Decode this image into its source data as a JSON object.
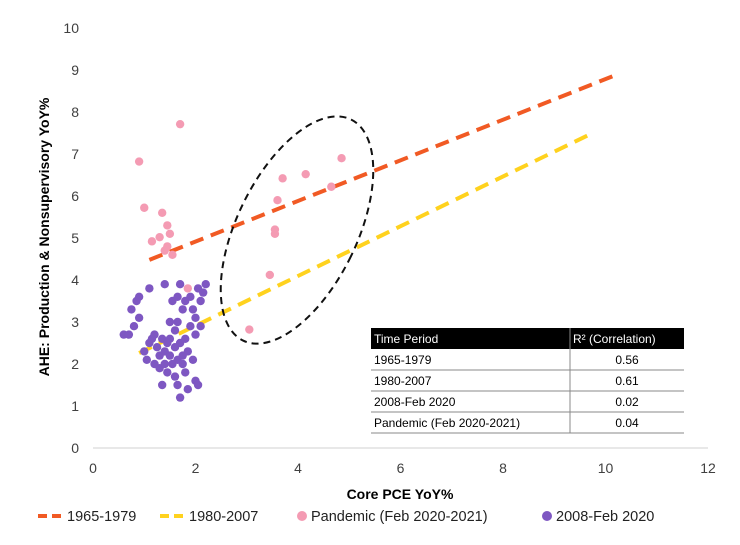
{
  "chart_data": {
    "type": "scatter",
    "xlabel": "Core PCE YoY%",
    "ylabel": "AHE: Production & Nonsupervisory YoY%",
    "xlim": [
      0,
      12
    ],
    "ylim": [
      0,
      10
    ],
    "xticks": [
      0,
      2,
      4,
      6,
      8,
      10,
      12
    ],
    "yticks": [
      0,
      1,
      2,
      3,
      4,
      5,
      6,
      7,
      8,
      9,
      10
    ],
    "grid": false,
    "legend_position": "bottom",
    "trend_lines": [
      {
        "name": "1965-1979",
        "color": "#F15A24",
        "x": [
          1.1,
          10.2
        ],
        "y": [
          4.48,
          8.88
        ]
      },
      {
        "name": "1980-2007",
        "color": "#FFD21E",
        "x": [
          0.9,
          9.75
        ],
        "y": [
          2.26,
          7.5
        ]
      }
    ],
    "series": [
      {
        "name": "Pandemic (Feb 2020-2021)",
        "color": "#F49BB3",
        "points": [
          [
            0.9,
            6.82
          ],
          [
            1.7,
            7.71
          ],
          [
            1.0,
            5.72
          ],
          [
            1.35,
            5.6
          ],
          [
            1.45,
            5.3
          ],
          [
            1.5,
            5.1
          ],
          [
            1.15,
            4.92
          ],
          [
            1.3,
            5.02
          ],
          [
            1.45,
            4.8
          ],
          [
            1.4,
            4.7
          ],
          [
            1.55,
            4.6
          ],
          [
            1.85,
            3.8
          ],
          [
            3.05,
            2.82
          ],
          [
            3.45,
            4.12
          ],
          [
            3.55,
            5.1
          ],
          [
            3.55,
            5.2
          ],
          [
            3.6,
            5.9
          ],
          [
            3.7,
            6.42
          ],
          [
            4.15,
            6.52
          ],
          [
            4.65,
            6.22
          ],
          [
            4.85,
            6.9
          ]
        ]
      },
      {
        "name": "2008-Feb 2020",
        "color": "#7E57C2",
        "points": [
          [
            0.6,
            2.7
          ],
          [
            0.7,
            2.7
          ],
          [
            0.75,
            3.3
          ],
          [
            0.8,
            2.9
          ],
          [
            0.85,
            3.5
          ],
          [
            0.9,
            3.6
          ],
          [
            0.9,
            3.1
          ],
          [
            1.0,
            2.3
          ],
          [
            1.05,
            2.1
          ],
          [
            1.1,
            2.5
          ],
          [
            1.1,
            3.8
          ],
          [
            1.15,
            2.6
          ],
          [
            1.2,
            2.0
          ],
          [
            1.25,
            2.4
          ],
          [
            1.2,
            2.7
          ],
          [
            1.3,
            2.2
          ],
          [
            1.3,
            1.9
          ],
          [
            1.35,
            2.6
          ],
          [
            1.35,
            1.5
          ],
          [
            1.4,
            2.3
          ],
          [
            1.4,
            2.0
          ],
          [
            1.4,
            3.9
          ],
          [
            1.45,
            2.5
          ],
          [
            1.45,
            1.8
          ],
          [
            1.5,
            2.2
          ],
          [
            1.5,
            3.0
          ],
          [
            1.5,
            2.6
          ],
          [
            1.55,
            3.5
          ],
          [
            1.55,
            2.0
          ],
          [
            1.6,
            2.4
          ],
          [
            1.6,
            1.7
          ],
          [
            1.6,
            2.8
          ],
          [
            1.65,
            3.6
          ],
          [
            1.65,
            2.1
          ],
          [
            1.65,
            1.5
          ],
          [
            1.7,
            2.5
          ],
          [
            1.7,
            3.9
          ],
          [
            1.7,
            1.2
          ],
          [
            1.75,
            3.3
          ],
          [
            1.75,
            2.0
          ],
          [
            1.8,
            2.6
          ],
          [
            1.8,
            1.8
          ],
          [
            1.8,
            3.5
          ],
          [
            1.85,
            2.3
          ],
          [
            1.85,
            1.4
          ],
          [
            1.9,
            2.9
          ],
          [
            1.9,
            3.6
          ],
          [
            1.95,
            2.1
          ],
          [
            1.95,
            3.3
          ],
          [
            2.0,
            2.7
          ],
          [
            2.0,
            1.6
          ],
          [
            2.05,
            3.8
          ],
          [
            2.05,
            1.5
          ],
          [
            2.1,
            3.5
          ],
          [
            2.1,
            2.9
          ],
          [
            2.15,
            3.7
          ],
          [
            2.2,
            3.9
          ],
          [
            2.0,
            3.1
          ],
          [
            1.75,
            2.2
          ],
          [
            1.65,
            3.0
          ]
        ]
      }
    ],
    "table": {
      "headers": [
        "Time Period",
        "R² (Correlation)"
      ],
      "rows": [
        [
          "1965-1979",
          "0.56"
        ],
        [
          "1980-2007",
          "0.61"
        ],
        [
          "2008-Feb 2020",
          "0.02"
        ],
        [
          "Pandemic (Feb 2020-2021)",
          "0.04"
        ]
      ]
    }
  }
}
